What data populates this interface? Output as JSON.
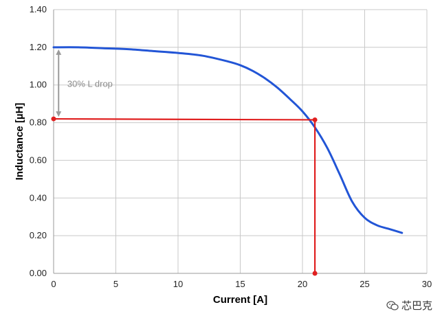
{
  "chart_data": {
    "type": "line",
    "xlabel": "Current [A]",
    "ylabel": "Inductance [µH]",
    "xlim": [
      0,
      30
    ],
    "ylim": [
      0,
      1.4
    ],
    "xticks": [
      0,
      5,
      10,
      15,
      20,
      25,
      30
    ],
    "xtick_labels": [
      "0",
      "5",
      "10",
      "15",
      "20",
      "25",
      "30"
    ],
    "yticks": [
      0,
      0.2,
      0.4,
      0.6,
      0.8,
      1.0,
      1.2,
      1.4
    ],
    "ytick_labels": [
      "0.00",
      "0.20",
      "0.40",
      "0.60",
      "0.80",
      "1.00",
      "1.20",
      "1.40"
    ],
    "grid": true,
    "series": [
      {
        "color": "#2255d6",
        "x": [
          0,
          2,
          4,
          6,
          8,
          10,
          12,
          14,
          15,
          16,
          17,
          18,
          19,
          20,
          21,
          22,
          23,
          24,
          25,
          26,
          27,
          28
        ],
        "y": [
          1.2,
          1.2,
          1.195,
          1.19,
          1.18,
          1.17,
          1.155,
          1.125,
          1.105,
          1.075,
          1.035,
          0.985,
          0.925,
          0.86,
          0.775,
          0.665,
          0.525,
          0.38,
          0.295,
          0.255,
          0.235,
          0.215
        ]
      }
    ],
    "markers": {
      "color": "#e02020",
      "horizontal": {
        "x": [
          0,
          21
        ],
        "y": [
          0.82,
          0.815
        ]
      },
      "vertical": {
        "x": [
          21,
          21
        ],
        "y": [
          0.815,
          0
        ]
      }
    },
    "drop_arrow": {
      "x": 0.4,
      "y_from": 1.2,
      "y_to": 0.82,
      "color": "#9a9a9a"
    },
    "annotations": [
      {
        "text": "30% L drop",
        "x": 1.1,
        "y": 0.99
      }
    ]
  },
  "watermark": {
    "text": "芯巴克",
    "icon": "wechat-icon"
  }
}
